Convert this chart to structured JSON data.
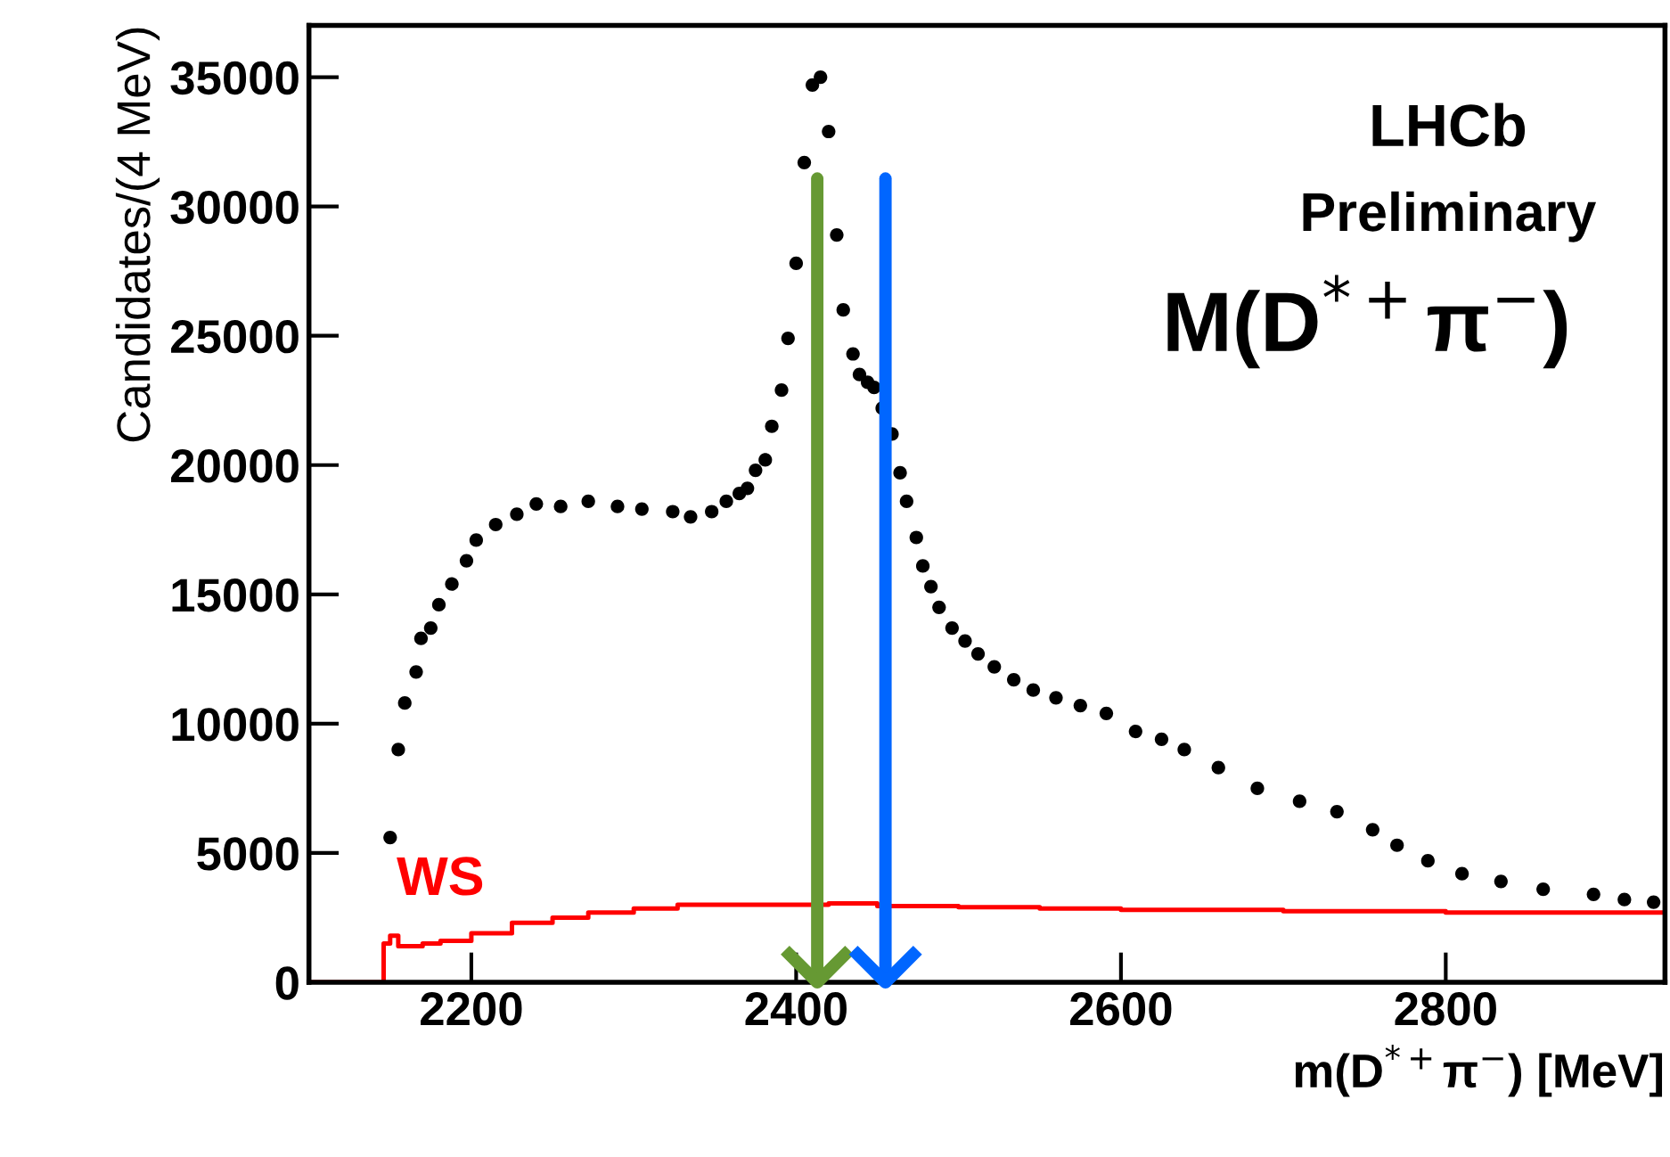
{
  "chart_data": {
    "type": "scatter",
    "xlabel": "m(D$^{*+}$π$^{−}$) [MeV]",
    "ylabel": "Candidates/(4 MeV)",
    "xlim": [
      2100,
      2935
    ],
    "ylim": [
      0,
      37000
    ],
    "xticks": [
      2200,
      2400,
      2600,
      2800
    ],
    "yticks": [
      0,
      5000,
      10000,
      15000,
      20000,
      25000,
      30000,
      35000
    ],
    "grid": false,
    "series": [
      {
        "color": "#000000",
        "marker": "circle",
        "x": [
          2150,
          2155,
          2159,
          2166,
          2169,
          2175,
          2180,
          2188,
          2197,
          2203,
          2215,
          2228,
          2240,
          2255,
          2272,
          2290,
          2305,
          2324,
          2335,
          2348,
          2357,
          2365,
          2370,
          2375,
          2381,
          2385,
          2391,
          2395,
          2400,
          2405,
          2410,
          2415,
          2420,
          2425,
          2429,
          2435,
          2439,
          2444,
          2448,
          2453,
          2459,
          2464,
          2468,
          2474,
          2478,
          2483,
          2488,
          2496,
          2504,
          2512,
          2522,
          2534,
          2546,
          2560,
          2575,
          2591,
          2609,
          2625,
          2639,
          2660,
          2684,
          2710,
          2733,
          2755,
          2770,
          2789,
          2810,
          2834,
          2860,
          2891,
          2910,
          2928
        ],
        "values": [
          5600,
          9000,
          10800,
          12000,
          13300,
          13700,
          14600,
          15400,
          16300,
          17100,
          17700,
          18100,
          18500,
          18400,
          18600,
          18400,
          18300,
          18200,
          18000,
          18200,
          18600,
          18900,
          19100,
          19800,
          20200,
          21500,
          22900,
          24900,
          27800,
          31700,
          34700,
          35000,
          32900,
          28900,
          26000,
          24300,
          23500,
          23200,
          23000,
          22200,
          21200,
          19700,
          18600,
          17200,
          16100,
          15300,
          14500,
          13700,
          13200,
          12700,
          12200,
          11700,
          11300,
          11000,
          10700,
          10400,
          9700,
          9400,
          9000,
          8300,
          7500,
          7000,
          6600,
          5900,
          5300,
          4700,
          4200,
          3900,
          3600,
          3400,
          3200,
          3100
        ]
      },
      {
        "type": "step",
        "name": "WS",
        "color": "#ff0000",
        "x": [
          2100,
          2146,
          2150,
          2155,
          2170,
          2181,
          2200,
          2225,
          2250,
          2272,
          2300,
          2327,
          2360,
          2390,
          2420,
          2450,
          2500,
          2550,
          2600,
          2650,
          2700,
          2750,
          2800,
          2850,
          2900,
          2935
        ],
        "values": [
          0,
          1500,
          1800,
          1400,
          1500,
          1600,
          1900,
          2300,
          2500,
          2700,
          2850,
          3000,
          3000,
          3000,
          3050,
          2950,
          2900,
          2850,
          2800,
          2800,
          2750,
          2750,
          2700,
          2700,
          2700,
          2750
        ]
      }
    ],
    "ref_lines": [
      {
        "axis": "x",
        "value": 2413,
        "color": "#669933"
      },
      {
        "axis": "x",
        "value": 2455,
        "color": "#0066ff"
      }
    ],
    "annotations": [
      "LHCb",
      "Preliminary",
      "M(D$^{*+}$π$^{−}$)"
    ]
  }
}
